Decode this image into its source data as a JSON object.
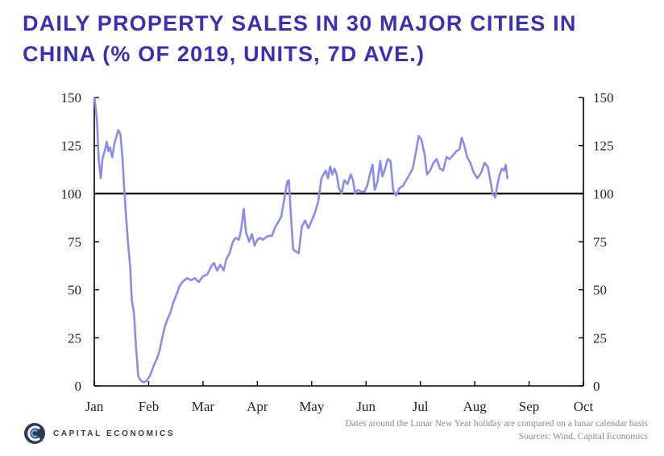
{
  "title_lines": [
    "DAILY PROPERTY SALES IN 30 MAJOR CITIES IN",
    "CHINA (% OF 2019, UNITS, 7D AVE.)"
  ],
  "brand": "CAPITAL ECONOMICS",
  "notes": {
    "line1": "Dates around the Lunar New Year holiday are compared on a lunar calendar basis",
    "line2": "Sources: Wind, Capital Economics"
  },
  "colors": {
    "title": "#3b2fb5",
    "series": "#8b8bef",
    "reference_line": "#000000",
    "logo": "#2c3a55"
  },
  "chart_data": {
    "type": "line",
    "title": "DAILY PROPERTY SALES IN 30 MAJOR CITIES IN CHINA (% OF 2019, UNITS, 7D AVE.)",
    "xlabel": "",
    "ylabel": "",
    "x_unit": "month",
    "xlim": [
      0,
      9
    ],
    "x_ticks": [
      {
        "value": 0,
        "label": "Jan"
      },
      {
        "value": 1,
        "label": "Feb"
      },
      {
        "value": 2,
        "label": "Mar"
      },
      {
        "value": 3,
        "label": "Apr"
      },
      {
        "value": 4,
        "label": "May"
      },
      {
        "value": 5,
        "label": "Jun"
      },
      {
        "value": 6,
        "label": "Jul"
      },
      {
        "value": 7,
        "label": "Aug"
      },
      {
        "value": 8,
        "label": "Sep"
      },
      {
        "value": 9,
        "label": "Oct"
      }
    ],
    "ylim": [
      0,
      150
    ],
    "y_ticks": [
      0,
      25,
      50,
      75,
      100,
      125,
      150
    ],
    "right_axis_mirror": true,
    "reference_line": 100,
    "grid": false,
    "legend": "none",
    "series": [
      {
        "name": "",
        "points": [
          [
            0.0,
            150
          ],
          [
            0.02,
            146
          ],
          [
            0.05,
            138
          ],
          [
            0.08,
            118
          ],
          [
            0.1,
            113
          ],
          [
            0.12,
            108
          ],
          [
            0.15,
            118
          ],
          [
            0.2,
            123
          ],
          [
            0.23,
            127
          ],
          [
            0.26,
            122
          ],
          [
            0.29,
            124
          ],
          [
            0.33,
            119
          ],
          [
            0.37,
            126
          ],
          [
            0.41,
            130
          ],
          [
            0.44,
            133
          ],
          [
            0.48,
            131
          ],
          [
            0.52,
            118
          ],
          [
            0.55,
            103
          ],
          [
            0.58,
            90
          ],
          [
            0.62,
            75
          ],
          [
            0.66,
            62
          ],
          [
            0.69,
            45
          ],
          [
            0.73,
            38
          ],
          [
            0.77,
            20
          ],
          [
            0.81,
            5
          ],
          [
            0.85,
            3
          ],
          [
            0.89,
            2
          ],
          [
            0.93,
            2
          ],
          [
            0.97,
            3
          ],
          [
            1.02,
            5
          ],
          [
            1.06,
            8
          ],
          [
            1.1,
            11
          ],
          [
            1.15,
            14
          ],
          [
            1.2,
            18
          ],
          [
            1.25,
            25
          ],
          [
            1.3,
            31
          ],
          [
            1.35,
            35
          ],
          [
            1.4,
            38
          ],
          [
            1.45,
            43
          ],
          [
            1.52,
            48
          ],
          [
            1.57,
            52
          ],
          [
            1.62,
            54
          ],
          [
            1.7,
            56
          ],
          [
            1.78,
            55
          ],
          [
            1.85,
            56
          ],
          [
            1.92,
            54
          ],
          [
            2.0,
            57
          ],
          [
            2.08,
            58
          ],
          [
            2.15,
            62
          ],
          [
            2.2,
            64
          ],
          [
            2.26,
            60
          ],
          [
            2.32,
            63
          ],
          [
            2.38,
            60
          ],
          [
            2.43,
            66
          ],
          [
            2.49,
            69
          ],
          [
            2.55,
            75
          ],
          [
            2.6,
            77
          ],
          [
            2.66,
            76
          ],
          [
            2.7,
            81
          ],
          [
            2.75,
            92
          ],
          [
            2.79,
            80
          ],
          [
            2.85,
            75
          ],
          [
            2.9,
            79
          ],
          [
            2.95,
            73
          ],
          [
            3.0,
            76
          ],
          [
            3.05,
            77
          ],
          [
            3.1,
            76
          ],
          [
            3.15,
            77
          ],
          [
            3.2,
            78
          ],
          [
            3.27,
            78
          ],
          [
            3.32,
            82
          ],
          [
            3.38,
            85
          ],
          [
            3.44,
            88
          ],
          [
            3.5,
            98
          ],
          [
            3.55,
            106
          ],
          [
            3.58,
            107
          ],
          [
            3.62,
            88
          ],
          [
            3.66,
            71
          ],
          [
            3.7,
            70
          ],
          [
            3.76,
            69
          ],
          [
            3.82,
            83
          ],
          [
            3.88,
            86
          ],
          [
            3.94,
            82
          ],
          [
            4.0,
            86
          ],
          [
            4.06,
            90
          ],
          [
            4.12,
            96
          ],
          [
            4.18,
            108
          ],
          [
            4.22,
            110
          ],
          [
            4.26,
            112
          ],
          [
            4.3,
            108
          ],
          [
            4.34,
            114
          ],
          [
            4.38,
            110
          ],
          [
            4.42,
            113
          ],
          [
            4.46,
            110
          ],
          [
            4.5,
            103
          ],
          [
            4.55,
            100
          ],
          [
            4.6,
            107
          ],
          [
            4.66,
            105
          ],
          [
            4.72,
            110
          ],
          [
            4.76,
            107
          ],
          [
            4.8,
            100
          ],
          [
            4.85,
            102
          ],
          [
            4.91,
            101
          ],
          [
            4.97,
            101
          ],
          [
            5.02,
            104
          ],
          [
            5.08,
            111
          ],
          [
            5.12,
            115
          ],
          [
            5.16,
            102
          ],
          [
            5.21,
            106
          ],
          [
            5.26,
            117
          ],
          [
            5.3,
            109
          ],
          [
            5.34,
            112
          ],
          [
            5.4,
            118
          ],
          [
            5.45,
            117
          ],
          [
            5.5,
            102
          ],
          [
            5.55,
            99
          ],
          [
            5.62,
            103
          ],
          [
            5.68,
            104
          ],
          [
            5.74,
            107
          ],
          [
            5.8,
            110
          ],
          [
            5.86,
            113
          ],
          [
            5.92,
            122
          ],
          [
            5.97,
            130
          ],
          [
            6.02,
            128
          ],
          [
            6.08,
            120
          ],
          [
            6.12,
            110
          ],
          [
            6.18,
            112
          ],
          [
            6.24,
            116
          ],
          [
            6.3,
            118
          ],
          [
            6.36,
            113
          ],
          [
            6.42,
            112
          ],
          [
            6.48,
            119
          ],
          [
            6.54,
            118
          ],
          [
            6.6,
            120
          ],
          [
            6.66,
            122
          ],
          [
            6.72,
            123
          ],
          [
            6.76,
            129
          ],
          [
            6.8,
            126
          ],
          [
            6.86,
            119
          ],
          [
            6.92,
            116
          ],
          [
            6.98,
            111
          ],
          [
            7.05,
            108
          ],
          [
            7.12,
            111
          ],
          [
            7.18,
            116
          ],
          [
            7.24,
            114
          ],
          [
            7.28,
            108
          ],
          [
            7.33,
            100
          ],
          [
            7.38,
            98
          ],
          [
            7.42,
            105
          ],
          [
            7.46,
            110
          ],
          [
            7.5,
            113
          ],
          [
            7.54,
            112
          ],
          [
            7.57,
            115
          ],
          [
            7.6,
            108
          ]
        ]
      }
    ]
  }
}
